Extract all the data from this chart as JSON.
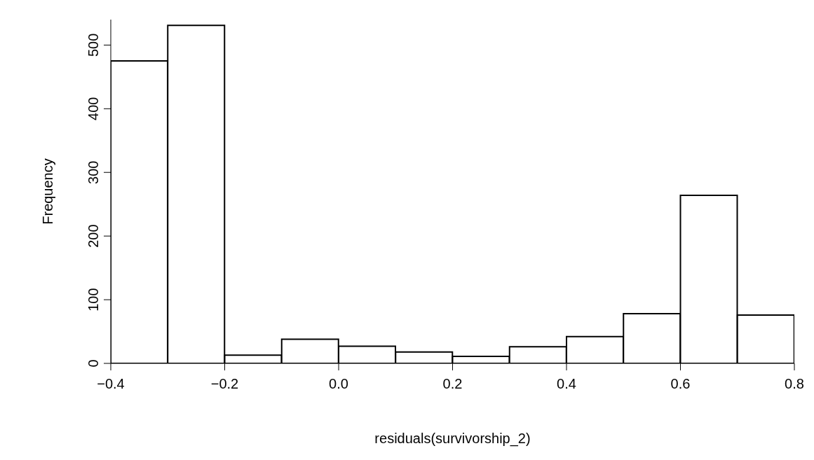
{
  "chart_data": {
    "type": "histogram",
    "xlabel": "residuals(survivorship_2)",
    "ylabel": "Frequency",
    "bins": [
      -0.4,
      -0.3,
      -0.2,
      -0.1,
      0.0,
      0.1,
      0.2,
      0.3,
      0.4,
      0.5,
      0.6,
      0.7,
      0.8
    ],
    "values": [
      475,
      531,
      13,
      38,
      27,
      18,
      11,
      26,
      42,
      78,
      264,
      76
    ],
    "color": "#ffffff",
    "xlim": [
      -0.4,
      0.8
    ],
    "xticks": [
      {
        "value": -0.4,
        "label": "−0.4"
      },
      {
        "value": -0.2,
        "label": "−0.2"
      },
      {
        "value": 0,
        "label": "0.0"
      },
      0.2,
      0.4,
      0.6,
      0.8
    ],
    "ylim": [
      0,
      540
    ],
    "yticks": [
      0,
      100,
      200,
      300,
      400,
      500
    ],
    "grid": false
  }
}
